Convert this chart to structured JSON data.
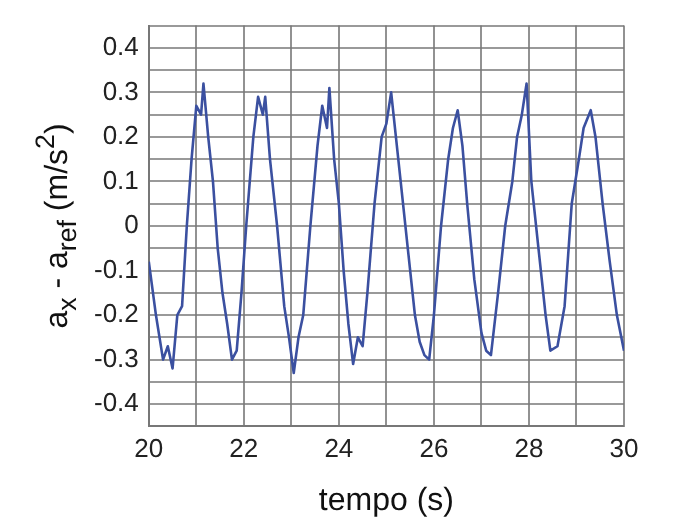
{
  "chart_data": {
    "type": "line",
    "xlabel": "tempo (s)",
    "ylabel": "a$_{x}$ - a$_{ref}$  (m/s$^{2}$)",
    "xlim": [
      20,
      30
    ],
    "xticks": [
      20,
      {
        "value": 21,
        "label": null
      },
      22,
      {
        "value": 23,
        "label": null
      },
      24,
      {
        "value": 25,
        "label": null
      },
      26,
      {
        "value": 27,
        "label": null
      },
      28,
      {
        "value": 29,
        "label": null
      },
      30
    ],
    "ylim": [
      -0.45,
      0.45
    ],
    "yticks": [
      {
        "value": -0.45,
        "label": null
      },
      -0.4,
      {
        "value": -0.35,
        "label": null
      },
      -0.3,
      {
        "value": -0.25,
        "label": null
      },
      -0.2,
      {
        "value": -0.15,
        "label": null
      },
      -0.1,
      {
        "value": -0.05,
        "label": null
      },
      0,
      {
        "value": 0.05,
        "label": null
      },
      0.1,
      {
        "value": 0.15,
        "label": null
      },
      0.2,
      {
        "value": 0.25,
        "label": null
      },
      0.3,
      {
        "value": 0.35,
        "label": null
      },
      0.4,
      {
        "value": 0.45,
        "label": null
      }
    ],
    "grid": true,
    "legend": false,
    "marker": "none",
    "line_style": "solid",
    "series": [
      {
        "color": "#3b50a0",
        "x": [
          20.0,
          20.15,
          20.3,
          20.4,
          20.5,
          20.6,
          20.7,
          20.8,
          20.9,
          21.0,
          21.1,
          21.15,
          21.25,
          21.35,
          21.45,
          21.55,
          21.65,
          21.75,
          21.85,
          21.95,
          22.05,
          22.2,
          22.3,
          22.4,
          22.45,
          22.55,
          22.7,
          22.85,
          22.95,
          23.05,
          23.15,
          23.25,
          23.4,
          23.55,
          23.65,
          23.75,
          23.8,
          23.9,
          24.0,
          24.1,
          24.2,
          24.3,
          24.4,
          24.5,
          24.6,
          24.75,
          24.9,
          25.0,
          25.1,
          25.2,
          25.3,
          25.45,
          25.6,
          25.7,
          25.8,
          25.9,
          26.0,
          26.15,
          26.3,
          26.4,
          26.5,
          26.6,
          26.7,
          26.85,
          27.0,
          27.1,
          27.2,
          27.35,
          27.5,
          27.65,
          27.75,
          27.85,
          27.95,
          28.05,
          28.2,
          28.35,
          28.45,
          28.6,
          28.75,
          28.9,
          29.05,
          29.15,
          29.3,
          29.4,
          29.55,
          29.7,
          29.85,
          30.0
        ],
        "values": [
          -0.08,
          -0.2,
          -0.3,
          -0.27,
          -0.32,
          -0.2,
          -0.18,
          0.0,
          0.15,
          0.27,
          0.25,
          0.32,
          0.2,
          0.1,
          -0.05,
          -0.15,
          -0.22,
          -0.3,
          -0.28,
          -0.15,
          0.0,
          0.2,
          0.29,
          0.25,
          0.29,
          0.15,
          0.0,
          -0.18,
          -0.25,
          -0.33,
          -0.25,
          -0.2,
          0.0,
          0.18,
          0.27,
          0.22,
          0.31,
          0.15,
          0.05,
          -0.1,
          -0.22,
          -0.31,
          -0.25,
          -0.27,
          -0.15,
          0.05,
          0.2,
          0.23,
          0.3,
          0.2,
          0.1,
          -0.05,
          -0.2,
          -0.26,
          -0.29,
          -0.3,
          -0.2,
          0.0,
          0.15,
          0.22,
          0.26,
          0.18,
          0.05,
          -0.12,
          -0.24,
          -0.28,
          -0.29,
          -0.15,
          0.0,
          0.1,
          0.2,
          0.25,
          0.32,
          0.1,
          -0.05,
          -0.2,
          -0.28,
          -0.27,
          -0.18,
          0.05,
          0.15,
          0.22,
          0.26,
          0.2,
          0.05,
          -0.08,
          -0.2,
          -0.28
        ]
      }
    ]
  }
}
